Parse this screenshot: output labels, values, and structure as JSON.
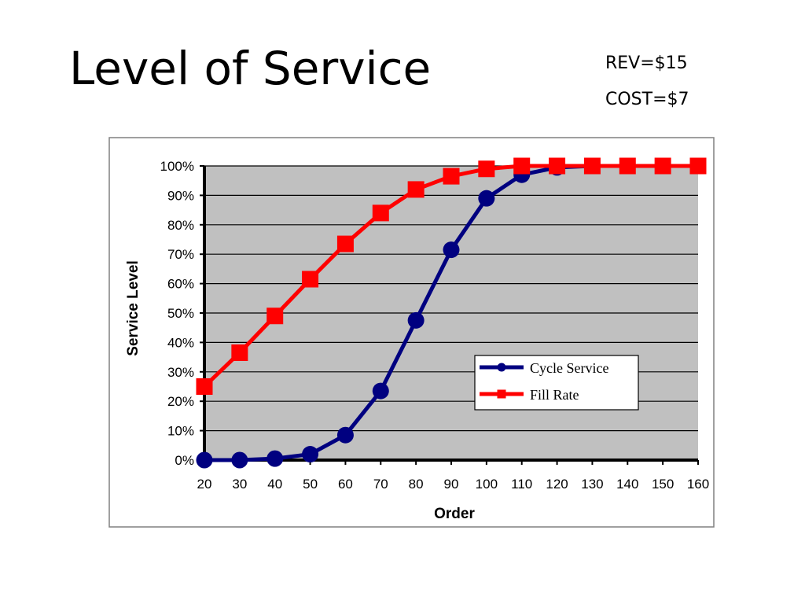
{
  "slide": {
    "title": "Level of Service",
    "notes": [
      "REV=$15",
      "COST=$7"
    ]
  },
  "colors": {
    "plot_background": "#c0c0c0",
    "gridline": "#000000",
    "cycle_service": "#000080",
    "fill_rate": "#ff0000"
  },
  "chart_data": {
    "type": "line",
    "title": "",
    "xlabel": "Order",
    "ylabel": "Service Level",
    "x": [
      20,
      30,
      40,
      50,
      60,
      70,
      80,
      90,
      100,
      110,
      120,
      130,
      140,
      150,
      160
    ],
    "x_tick_labels": [
      "20",
      "30",
      "40",
      "50",
      "60",
      "70",
      "80",
      "90",
      "100",
      "110",
      "120",
      "130",
      "140",
      "150",
      "160"
    ],
    "ylim": [
      0,
      100
    ],
    "y_tick_labels": [
      "0%",
      "10%",
      "20%",
      "30%",
      "40%",
      "50%",
      "60%",
      "70%",
      "80%",
      "90%",
      "100%"
    ],
    "grid": true,
    "legend_position": "center-right",
    "series": [
      {
        "name": "Cycle Service",
        "marker": "circle",
        "color": "#000080",
        "values": [
          0,
          0,
          0.5,
          2,
          8.5,
          23.5,
          47.5,
          71.5,
          89,
          97,
          99.5,
          100,
          100,
          100,
          100
        ]
      },
      {
        "name": "Fill Rate",
        "marker": "square",
        "color": "#ff0000",
        "values": [
          25,
          36.5,
          49,
          61.5,
          73.5,
          84,
          92,
          96.5,
          99,
          100,
          100,
          100,
          100,
          100,
          100
        ]
      }
    ]
  }
}
